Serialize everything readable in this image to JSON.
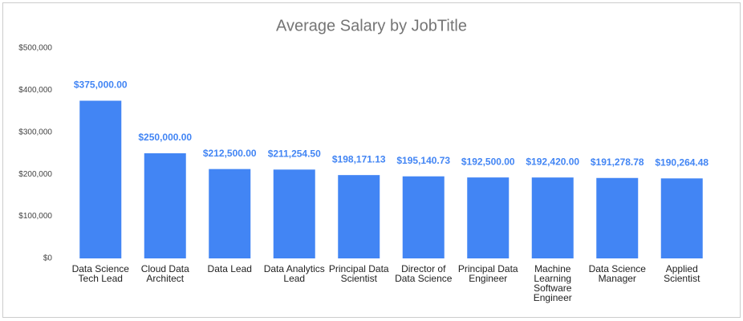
{
  "chart_data": {
    "type": "bar",
    "title": "Average Salary by JobTitle",
    "categories": [
      "Data Science Tech Lead",
      "Cloud Data Architect",
      "Data Lead",
      "Data Analytics Lead",
      "Principal Data Scientist",
      "Director of Data Science",
      "Principal Data Engineer",
      "Machine Learning Software Engineer",
      "Data Science Manager",
      "Applied Scientist"
    ],
    "values": [
      375000,
      250000,
      212500,
      211254.5,
      198171.13,
      195140.73,
      192500,
      192420,
      191278.78,
      190264.48
    ],
    "value_labels": [
      "$375,000.00",
      "$250,000.00",
      "$212,500.00",
      "$211,254.50",
      "$198,171.13",
      "$195,140.73",
      "$192,500.00",
      "$192,420.00",
      "$191,278.78",
      "$190,264.48"
    ],
    "color": "#4285f4",
    "ylim": [
      0,
      500000
    ],
    "yticks": [
      {
        "value": 0,
        "label": "$0"
      },
      {
        "value": 100000,
        "label": "$100,000"
      },
      {
        "value": 200000,
        "label": "$200,000"
      },
      {
        "value": 300000,
        "label": "$300,000"
      },
      {
        "value": 400000,
        "label": "$400,000"
      },
      {
        "value": 500000,
        "label": "$500,000"
      }
    ],
    "grid": false
  }
}
